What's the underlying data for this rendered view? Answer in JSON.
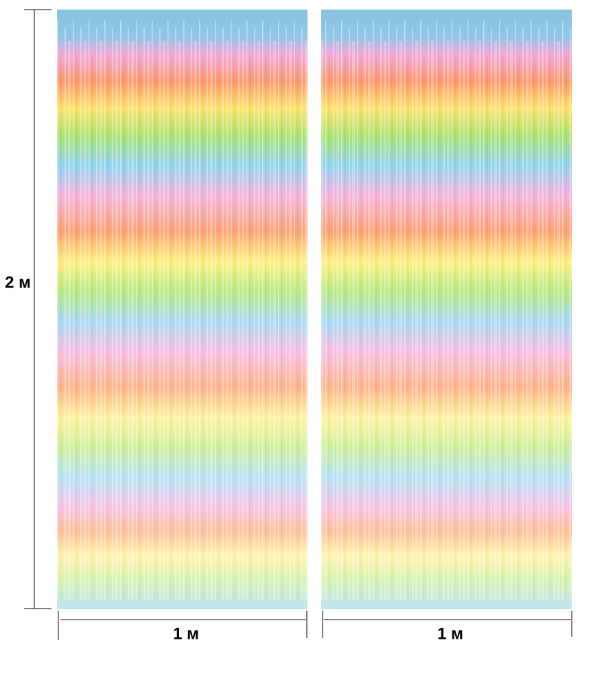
{
  "height_label": "2 м",
  "panels": [
    {
      "width_label": "1 м"
    },
    {
      "width_label": "1 м"
    }
  ]
}
